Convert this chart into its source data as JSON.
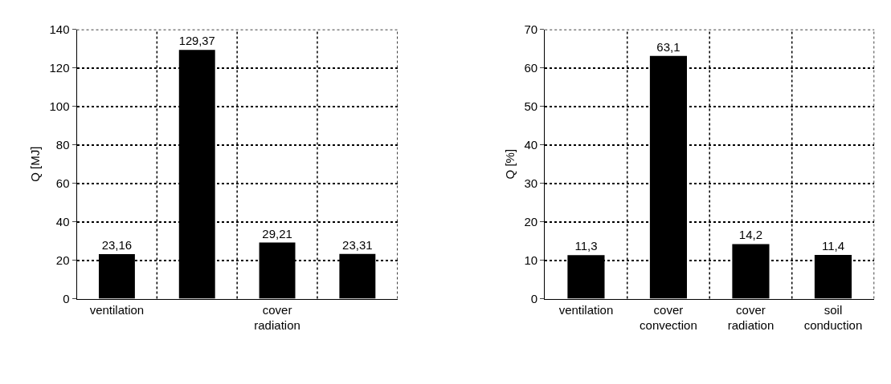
{
  "chart_data": [
    {
      "type": "bar",
      "categories": [
        "ventilation",
        null,
        "cover radiation",
        null
      ],
      "values": [
        23.16,
        129.37,
        29.21,
        23.31
      ],
      "value_labels": [
        "23,16",
        "129,37",
        "29,21",
        "23,31"
      ],
      "color": "#000000",
      "ylabel": "Q [MJ]",
      "ylim": [
        0,
        140
      ],
      "yticks": [
        0,
        20,
        40,
        60,
        80,
        100,
        120,
        140
      ],
      "grid": true,
      "line_style": "dotted"
    },
    {
      "type": "bar",
      "categories": [
        "ventilation",
        "cover convection",
        "cover radiation",
        "soil conduction"
      ],
      "values": [
        11.3,
        63.1,
        14.2,
        11.4
      ],
      "value_labels": [
        "11,3",
        "63,1",
        "14,2",
        "11,4"
      ],
      "color": "#000000",
      "ylabel": "Q [%]",
      "ylim": [
        0,
        70
      ],
      "yticks": [
        0,
        10,
        20,
        30,
        40,
        50,
        60,
        70
      ],
      "grid": true,
      "line_style": "dotted"
    }
  ]
}
